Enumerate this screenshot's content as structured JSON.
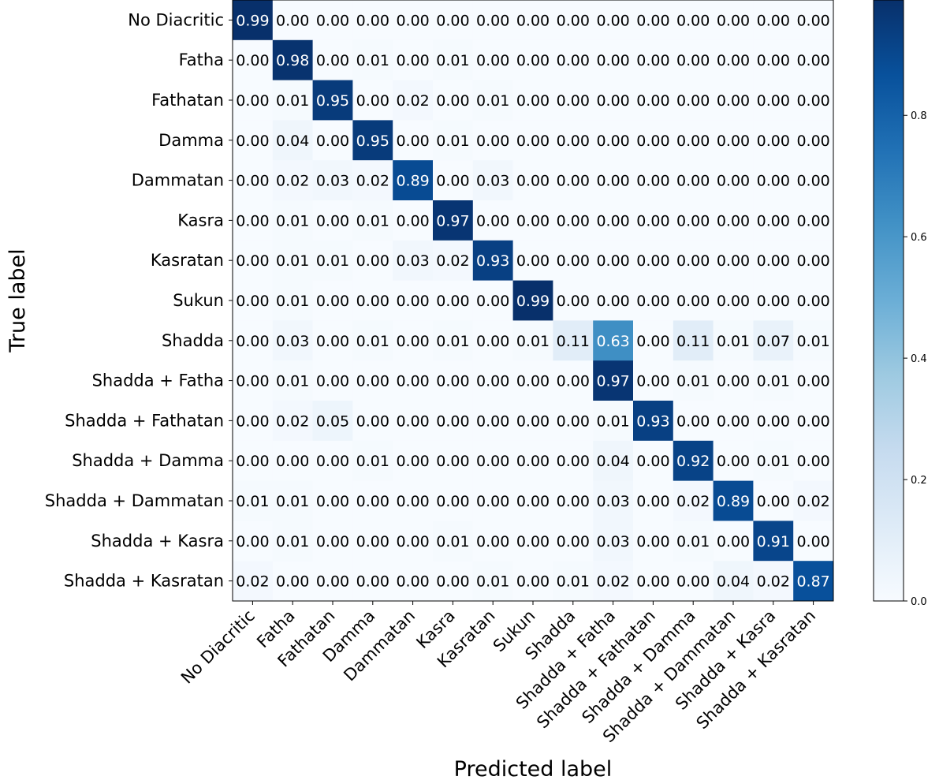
{
  "chart_data": {
    "type": "heatmap",
    "title": "",
    "xlabel": "Predicted label",
    "ylabel": "True label",
    "x_categories": [
      "No Diacritic",
      "Fatha",
      "Fathatan",
      "Damma",
      "Dammatan",
      "Kasra",
      "Kasratan",
      "Sukun",
      "Shadda",
      "Shadda + Fatha",
      "Shadda + Fathatan",
      "Shadda + Damma",
      "Shadda + Dammatan",
      "Shadda + Kasra",
      "Shadda + Kasratan"
    ],
    "y_categories": [
      "No Diacritic",
      "Fatha",
      "Fathatan",
      "Damma",
      "Dammatan",
      "Kasra",
      "Kasratan",
      "Sukun",
      "Shadda",
      "Shadda + Fatha",
      "Shadda + Fathatan",
      "Shadda + Damma",
      "Shadda + Dammatan",
      "Shadda + Kasra",
      "Shadda + Kasratan"
    ],
    "values": [
      [
        0.99,
        0.0,
        0.0,
        0.0,
        0.0,
        0.0,
        0.0,
        0.0,
        0.0,
        0.0,
        0.0,
        0.0,
        0.0,
        0.0,
        0.0
      ],
      [
        0.0,
        0.98,
        0.0,
        0.01,
        0.0,
        0.01,
        0.0,
        0.0,
        0.0,
        0.0,
        0.0,
        0.0,
        0.0,
        0.0,
        0.0
      ],
      [
        0.0,
        0.01,
        0.95,
        0.0,
        0.02,
        0.0,
        0.01,
        0.0,
        0.0,
        0.0,
        0.0,
        0.0,
        0.0,
        0.0,
        0.0
      ],
      [
        0.0,
        0.04,
        0.0,
        0.95,
        0.0,
        0.01,
        0.0,
        0.0,
        0.0,
        0.0,
        0.0,
        0.0,
        0.0,
        0.0,
        0.0
      ],
      [
        0.0,
        0.02,
        0.03,
        0.02,
        0.89,
        0.0,
        0.03,
        0.0,
        0.0,
        0.0,
        0.0,
        0.0,
        0.0,
        0.0,
        0.0
      ],
      [
        0.0,
        0.01,
        0.0,
        0.01,
        0.0,
        0.97,
        0.0,
        0.0,
        0.0,
        0.0,
        0.0,
        0.0,
        0.0,
        0.0,
        0.0
      ],
      [
        0.0,
        0.01,
        0.01,
        0.0,
        0.03,
        0.02,
        0.93,
        0.0,
        0.0,
        0.0,
        0.0,
        0.0,
        0.0,
        0.0,
        0.0
      ],
      [
        0.0,
        0.01,
        0.0,
        0.0,
        0.0,
        0.0,
        0.0,
        0.99,
        0.0,
        0.0,
        0.0,
        0.0,
        0.0,
        0.0,
        0.0
      ],
      [
        0.0,
        0.03,
        0.0,
        0.01,
        0.0,
        0.01,
        0.0,
        0.01,
        0.11,
        0.63,
        0.0,
        0.11,
        0.01,
        0.07,
        0.01
      ],
      [
        0.0,
        0.01,
        0.0,
        0.0,
        0.0,
        0.0,
        0.0,
        0.0,
        0.0,
        0.97,
        0.0,
        0.01,
        0.0,
        0.01,
        0.0
      ],
      [
        0.0,
        0.02,
        0.05,
        0.0,
        0.0,
        0.0,
        0.0,
        0.0,
        0.0,
        0.01,
        0.93,
        0.0,
        0.0,
        0.0,
        0.0
      ],
      [
        0.0,
        0.0,
        0.0,
        0.01,
        0.0,
        0.0,
        0.0,
        0.0,
        0.0,
        0.04,
        0.0,
        0.92,
        0.0,
        0.01,
        0.0
      ],
      [
        0.01,
        0.01,
        0.0,
        0.0,
        0.0,
        0.0,
        0.0,
        0.0,
        0.0,
        0.03,
        0.0,
        0.02,
        0.89,
        0.0,
        0.02
      ],
      [
        0.0,
        0.01,
        0.0,
        0.0,
        0.0,
        0.01,
        0.0,
        0.0,
        0.0,
        0.03,
        0.0,
        0.01,
        0.0,
        0.91,
        0.0
      ],
      [
        0.02,
        0.0,
        0.0,
        0.0,
        0.0,
        0.0,
        0.01,
        0.0,
        0.01,
        0.02,
        0.0,
        0.0,
        0.04,
        0.02,
        0.87
      ]
    ],
    "color_scale": {
      "colormap": "Blues",
      "range": [
        0.0,
        0.99
      ],
      "ticks": [
        0.0,
        0.2,
        0.4,
        0.6,
        0.8
      ],
      "tick_labels": [
        "0.0",
        "0.2",
        "0.4",
        "0.6",
        "0.8"
      ],
      "stops": [
        "#f7fbff",
        "#deebf7",
        "#c6dbef",
        "#9ecae1",
        "#6baed6",
        "#4292c6",
        "#2171b5",
        "#08519c",
        "#08306b"
      ]
    },
    "text_color_threshold": 0.5,
    "text_colors": {
      "light": "#ffffff",
      "dark": "#000000"
    },
    "legend": "colorbar-right"
  }
}
